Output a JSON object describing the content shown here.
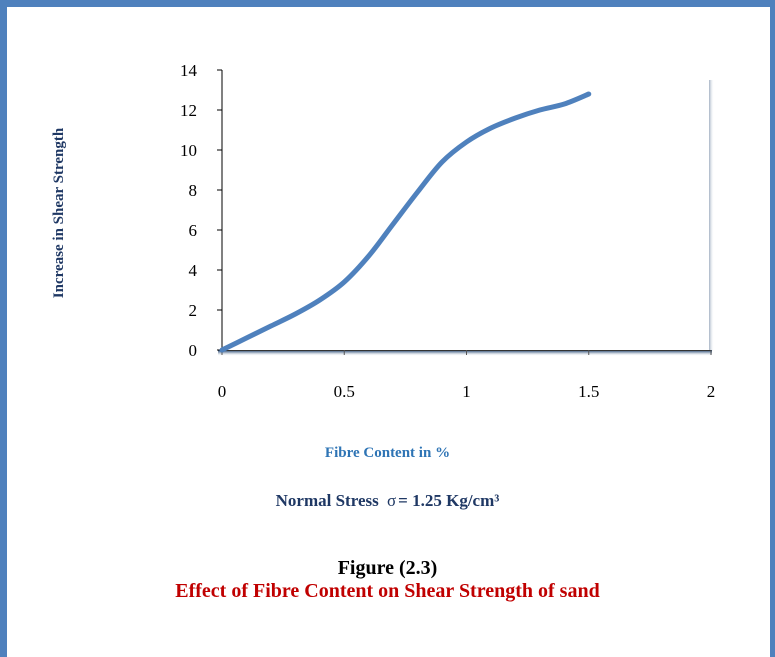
{
  "chart_data": {
    "type": "line",
    "xlabel": "Fibre Content in %",
    "ylabel": "Increase in Shear Strength",
    "xlim": [
      0,
      2
    ],
    "ylim": [
      0,
      14
    ],
    "x_ticks": [
      "0",
      "0.5",
      "1",
      "1.5",
      "2"
    ],
    "y_ticks": [
      "0",
      "2",
      "4",
      "6",
      "8",
      "10",
      "12",
      "14"
    ],
    "grid": false,
    "legend": "none",
    "series": [
      {
        "x": [
          0,
          0.1,
          0.2,
          0.3,
          0.4,
          0.5,
          0.6,
          0.7,
          0.8,
          0.9,
          1.0,
          1.1,
          1.2,
          1.3,
          1.4,
          1.5
        ],
        "y": [
          0,
          0.6,
          1.2,
          1.8,
          2.5,
          3.4,
          4.7,
          6.3,
          7.9,
          9.4,
          10.4,
          11.1,
          11.6,
          12.0,
          12.3,
          12.8
        ],
        "color": "#4f81bd"
      }
    ]
  },
  "annotation": {
    "prefix": "Normal Stress",
    "symbol": "σ",
    "value": "= 1.25 Kg/cm³"
  },
  "figure": {
    "number": "Figure (2.3)",
    "caption": "Effect of Fibre Content on Shear Strength of sand"
  },
  "colors": {
    "frame": "#4f81bd",
    "line": "#4f81bd",
    "caption": "#c00000",
    "axis_title": "#2e74b5",
    "note": "#1f3864"
  }
}
